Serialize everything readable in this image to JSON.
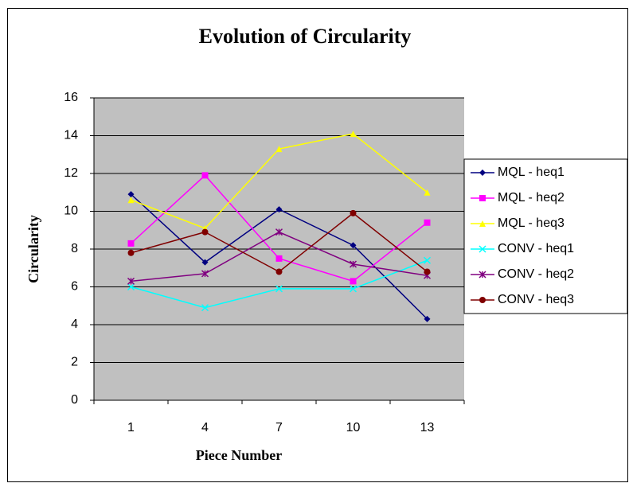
{
  "chart_data": {
    "type": "line",
    "title": "Evolution of Circularity",
    "x_label": "Piece Number",
    "y_label": "Circularity",
    "categories": [
      "1",
      "4",
      "7",
      "10",
      "13"
    ],
    "series": [
      {
        "name": "MQL - heq1",
        "color": "#000080",
        "marker": "diamond",
        "values": [
          10.9,
          7.3,
          10.1,
          8.2,
          4.3
        ]
      },
      {
        "name": "MQL - heq2",
        "color": "#ff00ff",
        "marker": "square",
        "values": [
          8.3,
          11.9,
          7.5,
          6.3,
          9.4
        ]
      },
      {
        "name": "MQL - heq3",
        "color": "#ffff00",
        "marker": "triangle",
        "values": [
          10.6,
          9.1,
          13.3,
          14.1,
          11.0
        ]
      },
      {
        "name": "CONV - heq1",
        "color": "#00ffff",
        "marker": "x",
        "values": [
          6.0,
          4.9,
          5.9,
          5.9,
          7.4
        ]
      },
      {
        "name": "CONV - heq2",
        "color": "#800080",
        "marker": "star",
        "values": [
          6.3,
          6.7,
          8.9,
          7.2,
          6.6
        ]
      },
      {
        "name": "CONV - heq3",
        "color": "#800000",
        "marker": "circle",
        "values": [
          7.8,
          8.9,
          6.8,
          9.9,
          6.8
        ]
      }
    ],
    "ylim": [
      0,
      16
    ],
    "yticks": [
      0,
      2,
      4,
      6,
      8,
      10,
      12,
      14,
      16
    ],
    "grid": true,
    "plot_background": "#c0c0c0",
    "legend": "right"
  }
}
